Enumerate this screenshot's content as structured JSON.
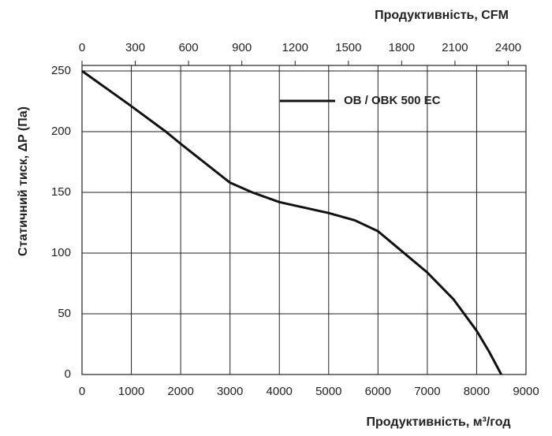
{
  "chart_data": {
    "type": "line",
    "x_label": "Продуктивність, м³/год",
    "x2_label": "Продуктивність, CFM",
    "y_label": "Статичний тиск, ΔP (Па)",
    "xlim": [
      0,
      9000
    ],
    "xticks": [
      0,
      1000,
      2000,
      3000,
      4000,
      5000,
      6000,
      7000,
      8000,
      9000
    ],
    "x2lim": [
      0,
      2500
    ],
    "x2ticks": [
      0,
      300,
      600,
      900,
      1200,
      1500,
      1800,
      2100,
      2400
    ],
    "ylim": [
      0,
      250
    ],
    "yticks": [
      0,
      50,
      100,
      150,
      200,
      250
    ],
    "grid": true,
    "legend": "upper right",
    "x": [
      0,
      1000,
      1700,
      2000,
      3000,
      3450,
      4000,
      5000,
      5530,
      6000,
      6500,
      7000,
      7530,
      8000,
      8250,
      8500
    ],
    "series": [
      {
        "name": "OB / OBK 500 EC",
        "color": "#111111",
        "values": [
          250,
          221,
          200,
          190,
          158,
          150,
          142,
          133,
          127,
          118,
          101,
          84,
          62,
          36,
          19,
          0
        ]
      }
    ]
  }
}
